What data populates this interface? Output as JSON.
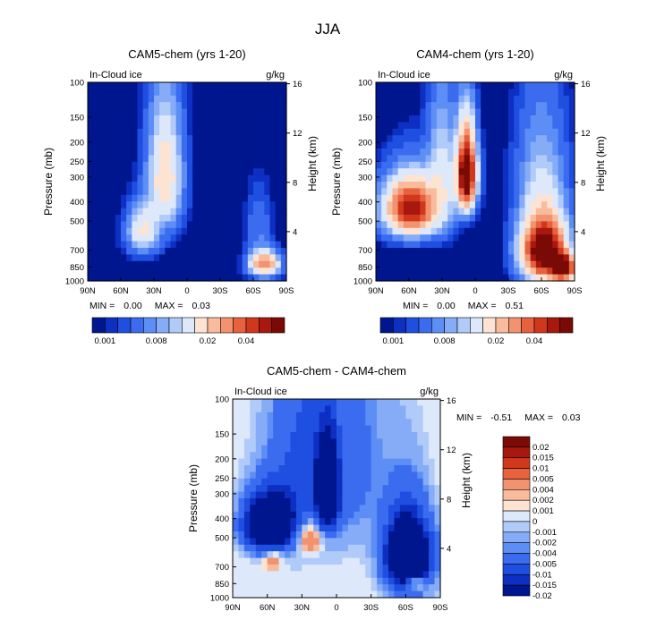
{
  "page_title": "JJA",
  "colors": {
    "abs_scale": [
      "#00168f",
      "#0d2fc2",
      "#1f4fe0",
      "#3b6cf0",
      "#5d8ef5",
      "#86acf7",
      "#b1cbf9",
      "#dde8fb",
      "#fde3d2",
      "#f8bc9c",
      "#f2926e",
      "#e8613e",
      "#d0381c",
      "#a8180e",
      "#7a0a05"
    ],
    "diff_scale": [
      "#00168f",
      "#0d2fc2",
      "#1f4fe0",
      "#3b6cf0",
      "#5d8ef5",
      "#86acf7",
      "#b1cbf9",
      "#dde8fb",
      "#fde3d2",
      "#f8bc9c",
      "#f2926e",
      "#e8613e",
      "#d0381c",
      "#a8180e",
      "#7a0a05"
    ]
  },
  "chart_data": [
    {
      "id": "cam5",
      "type": "heatmap",
      "title": "CAM5-chem (yrs 1-20)",
      "field_label": "In-Cloud ice",
      "units": "g/kg",
      "ylabel": "Pressure (mb)",
      "ylabel_right": "Height (km)",
      "x_ticks": [
        "90N",
        "60N",
        "30N",
        "0",
        "30S",
        "60S",
        "90S"
      ],
      "x_values": [
        90,
        60,
        30,
        0,
        -30,
        -60,
        -90
      ],
      "p_ticks": [
        100,
        150,
        200,
        250,
        300,
        400,
        500,
        700,
        850,
        1000
      ],
      "height_ticks": [
        16,
        12,
        8,
        4
      ],
      "ylim": [
        1000,
        100
      ],
      "xlim": [
        90,
        -90
      ],
      "min_label": "MIN =",
      "min": "0.00",
      "max_label": "MAX =",
      "max": "0.03",
      "colorbar_labels": [
        "0.001",
        "0.008",
        "0.02",
        "0.04"
      ],
      "blobs": [
        {
          "lat": 20,
          "p": 300,
          "sx": 14,
          "sp": 190,
          "amp": 0.02
        },
        {
          "lat": 40,
          "p": 560,
          "sx": 13,
          "sp": 140,
          "amp": 0.016
        },
        {
          "lat": -70,
          "p": 820,
          "sx": 12,
          "sp": 110,
          "amp": 0.03
        },
        {
          "lat": -65,
          "p": 550,
          "sx": 10,
          "sp": 200,
          "amp": 0.004
        }
      ]
    },
    {
      "id": "cam4",
      "type": "heatmap",
      "title": "CAM4-chem (yrs 1-20)",
      "field_label": "In-Cloud ice",
      "units": "g/kg",
      "ylabel": "Pressure (mb)",
      "ylabel_right": "Height (km)",
      "x_ticks": [
        "90N",
        "60N",
        "30N",
        "0",
        "30S",
        "60S",
        "90S"
      ],
      "x_values": [
        90,
        60,
        30,
        0,
        -30,
        -60,
        -90
      ],
      "p_ticks": [
        100,
        150,
        200,
        250,
        300,
        400,
        500,
        700,
        850,
        1000
      ],
      "height_ticks": [
        16,
        12,
        8,
        4
      ],
      "ylim": [
        1000,
        100
      ],
      "xlim": [
        90,
        -90
      ],
      "min_label": "MIN =",
      "min": "0.00",
      "max_label": "MAX =",
      "max": "0.51",
      "colorbar_labels": [
        "0.001",
        "0.008",
        "0.02",
        "0.04"
      ],
      "blobs": [
        {
          "lat": 58,
          "p": 430,
          "sx": 22,
          "sp": 130,
          "amp": 0.045
        },
        {
          "lat": 8,
          "p": 290,
          "sx": 8,
          "sp": 120,
          "amp": 0.06
        },
        {
          "lat": 30,
          "p": 300,
          "sx": 12,
          "sp": 200,
          "amp": 0.012
        },
        {
          "lat": -62,
          "p": 700,
          "sx": 18,
          "sp": 240,
          "amp": 0.06
        },
        {
          "lat": -80,
          "p": 860,
          "sx": 10,
          "sp": 120,
          "amp": 0.05
        },
        {
          "lat": -60,
          "p": 300,
          "sx": 20,
          "sp": 200,
          "amp": 0.008
        }
      ]
    },
    {
      "id": "diff",
      "type": "heatmap",
      "title": "CAM5-chem - CAM4-chem",
      "field_label": "In-Cloud ice",
      "units": "g/kg",
      "ylabel": "Pressure (mb)",
      "ylabel_right": "Height (km)",
      "x_ticks": [
        "90N",
        "60N",
        "30N",
        "0",
        "30S",
        "60S",
        "90S"
      ],
      "x_values": [
        90,
        60,
        30,
        0,
        -30,
        -60,
        -90
      ],
      "p_ticks": [
        100,
        150,
        200,
        250,
        300,
        400,
        500,
        700,
        850,
        1000
      ],
      "height_ticks": [
        16,
        12,
        8,
        4
      ],
      "ylim": [
        1000,
        100
      ],
      "xlim": [
        90,
        -90
      ],
      "min_label": "MIN =",
      "min": "-0.51",
      "max_label": "MAX =",
      "max": "0.03",
      "colorbar_levels": [
        "0.02",
        "0.015",
        "0.01",
        "0.005",
        "0.004",
        "0.002",
        "0.001",
        "0",
        "-0.001",
        "-0.002",
        "-0.004",
        "-0.005",
        "-0.01",
        "-0.015",
        "-0.02"
      ],
      "blobs": [
        {
          "lat": 25,
          "p": 480,
          "sx": 14,
          "sp": 110,
          "amp": 0.012
        },
        {
          "lat": 55,
          "p": 620,
          "sx": 8,
          "sp": 80,
          "amp": 0.008
        },
        {
          "lat": -68,
          "p": 840,
          "sx": 8,
          "sp": 60,
          "amp": 0.02
        },
        {
          "lat": 58,
          "p": 430,
          "sx": 20,
          "sp": 130,
          "amp": -0.045
        },
        {
          "lat": 8,
          "p": 290,
          "sx": 8,
          "sp": 120,
          "amp": -0.06
        },
        {
          "lat": -62,
          "p": 620,
          "sx": 18,
          "sp": 250,
          "amp": -0.05
        },
        {
          "lat": 30,
          "p": 250,
          "sx": 30,
          "sp": 300,
          "amp": -0.01
        },
        {
          "lat": -10,
          "p": 200,
          "sx": 40,
          "sp": 300,
          "amp": -0.006
        }
      ]
    }
  ]
}
